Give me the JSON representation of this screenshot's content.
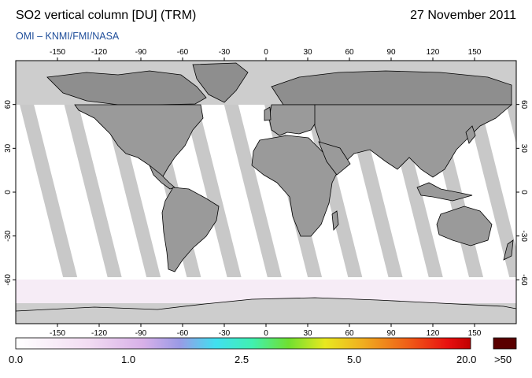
{
  "header": {
    "title": "SO2 vertical column [DU] (TRM)",
    "date": "27 November 2011",
    "source": "OMI  –  KNMI/FMI/NASA"
  },
  "map": {
    "lon_ticks": [
      "-150",
      "-120",
      "-90",
      "-60",
      "-30",
      "0",
      "30",
      "60",
      "90",
      "120",
      "150"
    ],
    "lat_ticks": [
      "60",
      "30",
      "0",
      "-30",
      "-60"
    ],
    "projection": "equirectangular",
    "missing_data_color": "#c8c8c8",
    "polar_mask_color": "#cdcdcd"
  },
  "colorbar": {
    "labels": [
      "0.0",
      "1.0",
      "2.5",
      "5.0",
      "20.0"
    ],
    "overflow_label": ">50",
    "overflow_color": "#5a0000"
  }
}
